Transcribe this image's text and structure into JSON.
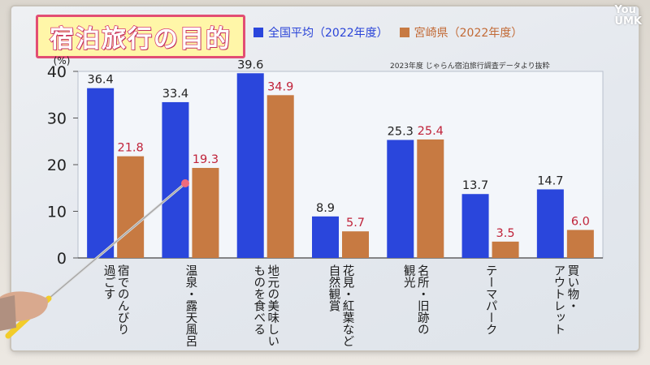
{
  "title": "宿泊旅行の目的",
  "watermark": {
    "line1": "You",
    "line2": "UMK"
  },
  "source_note": "2023年度 じゃらん宿泊旅行調査データより抜粋",
  "colors": {
    "national": "#2a46dc",
    "miyazaki": "#c77a42",
    "miyazaki_label": "#c0233a"
  },
  "chart_data": {
    "type": "bar",
    "title": "宿泊旅行の目的",
    "ylabel": "(%)",
    "xlabel": "",
    "ylim": [
      0,
      40
    ],
    "yticks": [
      0,
      10,
      20,
      30,
      40
    ],
    "categories": [
      [
        "宿でのんびり",
        "過ごす"
      ],
      [
        "温泉・露天風呂"
      ],
      [
        "地元の美味しい",
        "ものを食べる"
      ],
      [
        "花見・紅葉など",
        "自然観賞"
      ],
      [
        "名所・旧跡の",
        "観光"
      ],
      [
        "テーマパーク"
      ],
      [
        "買い物・",
        "アウトレット"
      ]
    ],
    "series": [
      {
        "name": "全国平均（2022年度）",
        "values": [
          36.4,
          33.4,
          39.6,
          8.9,
          25.3,
          13.7,
          14.7
        ]
      },
      {
        "name": "宮崎県（2022年度）",
        "values": [
          21.8,
          19.3,
          34.9,
          5.7,
          25.4,
          3.5,
          6.0
        ]
      }
    ]
  }
}
